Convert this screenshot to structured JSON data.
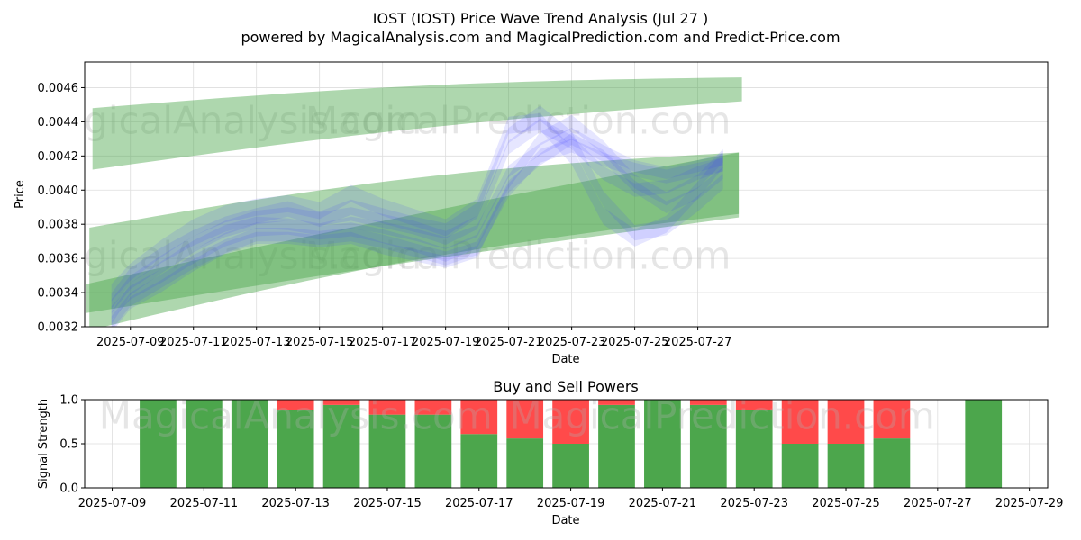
{
  "chart_data": [
    {
      "type": "area",
      "title": "IOST (IOST) Price Wave Trend Analysis (Jul 27 )",
      "subtitle": "powered by MagicalAnalysis.com and MagicalPrediction.com and Predict-Price.com",
      "xlabel": "Date",
      "ylabel": "Price",
      "xlim": [
        -0.45,
        30.1
      ],
      "ylim": [
        0.0032,
        0.00475
      ],
      "x_ticks": [
        {
          "x": 1,
          "label": "2025-07-09"
        },
        {
          "x": 3,
          "label": "2025-07-11"
        },
        {
          "x": 5,
          "label": "2025-07-13"
        },
        {
          "x": 7,
          "label": "2025-07-15"
        },
        {
          "x": 9,
          "label": "2025-07-17"
        },
        {
          "x": 11,
          "label": "2025-07-19"
        },
        {
          "x": 13,
          "label": "2025-07-21"
        },
        {
          "x": 15,
          "label": "2025-07-23"
        },
        {
          "x": 17,
          "label": "2025-07-25"
        },
        {
          "x": 19,
          "label": "2025-07-27"
        }
      ],
      "y_ticks": [
        {
          "y": 0.0032,
          "label": "0.0032"
        },
        {
          "y": 0.0034,
          "label": "0.0034"
        },
        {
          "y": 0.0036,
          "label": "0.0036"
        },
        {
          "y": 0.0038,
          "label": "0.0038"
        },
        {
          "y": 0.004,
          "label": "0.0040"
        },
        {
          "y": 0.0042,
          "label": "0.0042"
        },
        {
          "y": 0.0044,
          "label": "0.0044"
        },
        {
          "y": 0.0046,
          "label": "0.0046"
        }
      ],
      "green_bands": [
        {
          "x": [
            -0.2,
            20.4
          ],
          "upper": [
            0.00448,
            0.00466
          ],
          "lower": [
            0.00412,
            0.00452
          ],
          "curve": 4e-05
        },
        {
          "x": [
            -0.3,
            20.3
          ],
          "upper": [
            0.00378,
            0.00422
          ],
          "lower": [
            0.00318,
            0.00386
          ],
          "curve": 7e-05
        },
        {
          "x": [
            -0.4,
            20.3
          ],
          "upper": [
            0.00345,
            0.00422
          ],
          "lower": [
            0.00328,
            0.00384
          ],
          "curve": 2e-05
        }
      ],
      "price_series": [
        {
          "x": [
            0.4,
            1,
            2,
            3,
            4,
            5,
            6,
            7,
            8,
            9,
            10,
            11,
            12,
            13,
            14,
            15,
            16,
            17,
            18,
            19,
            19.8
          ],
          "y": [
            0.00325,
            0.00342,
            0.00355,
            0.00367,
            0.00376,
            0.00381,
            0.0038,
            0.00377,
            0.00381,
            0.00378,
            0.00374,
            0.00369,
            0.00376,
            0.00411,
            0.00424,
            0.00433,
            0.00423,
            0.00414,
            0.0041,
            0.00414,
            0.00418
          ],
          "w": 7e-05
        },
        {
          "x": [
            0.4,
            1,
            2,
            3,
            4,
            5,
            6,
            7,
            8,
            9,
            10,
            11,
            12,
            13,
            14,
            15,
            16,
            17,
            18,
            19,
            19.8
          ],
          "y": [
            0.00332,
            0.00346,
            0.00358,
            0.00369,
            0.00378,
            0.00384,
            0.00386,
            0.00383,
            0.00386,
            0.00382,
            0.00378,
            0.00372,
            0.00381,
            0.00425,
            0.00438,
            0.00428,
            0.0041,
            0.004,
            0.00402,
            0.0041,
            0.00415
          ],
          "w": 8e-05
        },
        {
          "x": [
            0.4,
            1,
            2,
            3,
            4,
            5,
            6,
            7,
            8,
            9,
            10,
            11,
            12,
            13,
            14,
            15,
            16,
            17,
            18,
            19,
            19.8
          ],
          "y": [
            0.00328,
            0.0034,
            0.0035,
            0.00361,
            0.00371,
            0.00377,
            0.00378,
            0.00375,
            0.00377,
            0.00373,
            0.00368,
            0.00362,
            0.0037,
            0.00405,
            0.0043,
            0.0044,
            0.00425,
            0.00405,
            0.00395,
            0.00405,
            0.0042
          ],
          "w": 8e-05
        },
        {
          "x": [
            0.4,
            1,
            2,
            3,
            4,
            5,
            6,
            7,
            8,
            9,
            10,
            11,
            12,
            13,
            14,
            15,
            16,
            17,
            18,
            19,
            19.8
          ],
          "y": [
            0.00335,
            0.0035,
            0.00362,
            0.00372,
            0.0038,
            0.00385,
            0.00389,
            0.00383,
            0.0039,
            0.00385,
            0.0038,
            0.00376,
            0.00388,
            0.00432,
            0.00445,
            0.0043,
            0.00395,
            0.00375,
            0.00378,
            0.00392,
            0.00405
          ],
          "w": 9e-05
        },
        {
          "x": [
            0.4,
            1,
            2,
            3,
            4,
            5,
            6,
            7,
            8,
            9,
            10,
            11,
            12,
            13,
            14,
            15,
            16,
            17,
            18,
            19,
            19.8
          ],
          "y": [
            0.00322,
            0.00336,
            0.00347,
            0.00358,
            0.00367,
            0.00374,
            0.00374,
            0.00372,
            0.00374,
            0.0037,
            0.00365,
            0.0036,
            0.00366,
            0.004,
            0.0042,
            0.00426,
            0.00418,
            0.00412,
            0.00408,
            0.00412,
            0.00415
          ],
          "w": 8e-05
        },
        {
          "x": [
            0.4,
            1,
            2,
            3,
            4,
            5,
            6,
            7,
            8,
            9,
            10,
            11,
            12,
            13,
            14,
            15,
            16,
            17,
            18,
            19,
            19.8
          ],
          "y": [
            0.0034,
            0.00352,
            0.00366,
            0.00378,
            0.00386,
            0.0039,
            0.00392,
            0.00388,
            0.00398,
            0.0039,
            0.00384,
            0.00378,
            0.0039,
            0.00438,
            0.0044,
            0.0042,
            0.00385,
            0.00372,
            0.0038,
            0.004,
            0.00418
          ],
          "w": 0.0001
        },
        {
          "x": [
            0.4,
            1,
            2,
            3,
            4,
            5,
            6,
            7,
            8,
            9,
            10,
            11,
            12,
            13,
            14,
            15,
            16,
            17,
            18,
            19,
            19.8
          ],
          "y": [
            0.0032,
            0.00334,
            0.00344,
            0.00356,
            0.00366,
            0.00372,
            0.00372,
            0.0037,
            0.00372,
            0.00366,
            0.00362,
            0.00358,
            0.00364,
            0.00402,
            0.00418,
            0.0043,
            0.0042,
            0.00402,
            0.0039,
            0.00398,
            0.0041
          ],
          "w": 7e-05
        }
      ],
      "watermarks": [
        {
          "text": "MagicalAnalysis.com",
          "x": 4.0,
          "y": 0.00433
        },
        {
          "text": "MagicalPrediction.com",
          "x": 13.3,
          "y": 0.00433
        },
        {
          "text": "MagicalAnalysis.com",
          "x": 4.0,
          "y": 0.00354
        },
        {
          "text": "MagicalPrediction.com",
          "x": 13.3,
          "y": 0.00354
        }
      ]
    },
    {
      "type": "bar",
      "title": "Buy and Sell Powers",
      "xlabel": "Date",
      "ylabel": "Signal Strength",
      "xlim": [
        -0.6,
        20.4
      ],
      "ylim": [
        0,
        1
      ],
      "x": [
        1,
        2,
        3,
        4,
        5,
        6,
        7,
        8,
        9,
        10,
        11,
        12,
        13,
        14,
        15,
        16,
        17,
        19
      ],
      "series": [
        {
          "name": "Buy",
          "color": "#4ca64c",
          "values": [
            1.0,
            1.0,
            1.0,
            0.88,
            0.94,
            0.83,
            0.83,
            0.61,
            0.56,
            0.5,
            0.94,
            1.0,
            0.94,
            0.88,
            0.5,
            0.5,
            0.56,
            1.0
          ]
        },
        {
          "name": "Sell",
          "color": "#ff4a4a",
          "values": [
            0.0,
            0.0,
            0.0,
            0.12,
            0.06,
            0.17,
            0.17,
            0.39,
            0.44,
            0.5,
            0.06,
            0.0,
            0.06,
            0.12,
            0.5,
            0.5,
            0.44,
            0.0
          ]
        }
      ],
      "bar_width": 0.8,
      "x_ticks": [
        {
          "x": 0,
          "label": "2025-07-09"
        },
        {
          "x": 2,
          "label": "2025-07-11"
        },
        {
          "x": 4,
          "label": "2025-07-13"
        },
        {
          "x": 6,
          "label": "2025-07-15"
        },
        {
          "x": 8,
          "label": "2025-07-17"
        },
        {
          "x": 10,
          "label": "2025-07-19"
        },
        {
          "x": 12,
          "label": "2025-07-21"
        },
        {
          "x": 14,
          "label": "2025-07-23"
        },
        {
          "x": 16,
          "label": "2025-07-25"
        },
        {
          "x": 18,
          "label": "2025-07-27"
        },
        {
          "x": 20,
          "label": "2025-07-29"
        }
      ],
      "y_ticks": [
        {
          "y": 0.0,
          "label": "0.0"
        },
        {
          "y": 0.5,
          "label": "0.5"
        },
        {
          "y": 1.0,
          "label": "1.0"
        }
      ],
      "watermarks": [
        {
          "text": "MagicalAnalysis.com",
          "x": 4.0,
          "y": 0.87
        },
        {
          "text": "MagicalPrediction.com",
          "x": 13.3,
          "y": 0.87
        }
      ]
    }
  ]
}
